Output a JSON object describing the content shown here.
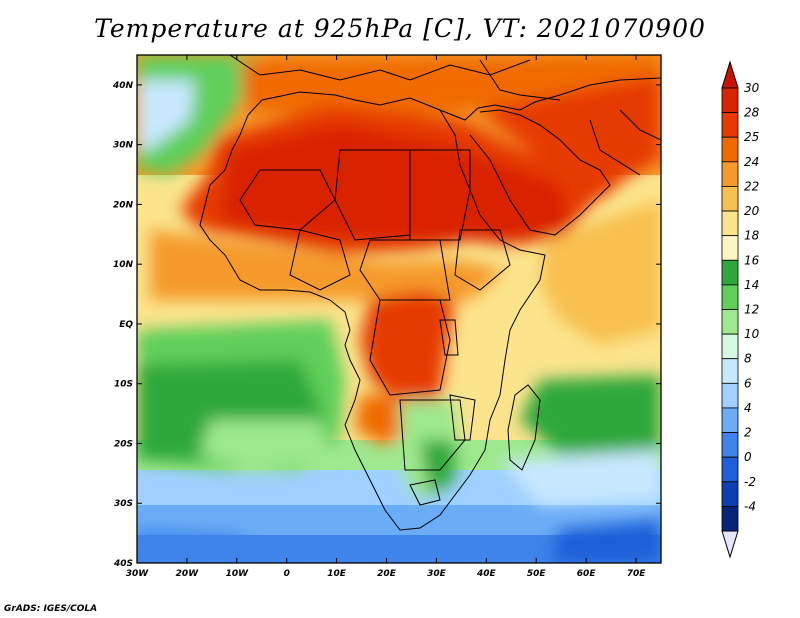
{
  "title": "Temperature at 925hPa [C], VT: 2021070900",
  "credit": "GrADS: IGES/COLA",
  "map": {
    "lat_ticks": [
      "40N",
      "30N",
      "20N",
      "10N",
      "EQ",
      "10S",
      "20S",
      "30S",
      "40S"
    ],
    "lon_ticks": [
      "30W",
      "20W",
      "10W",
      "0",
      "10E",
      "20E",
      "30E",
      "40E",
      "50E",
      "60E",
      "70E"
    ],
    "lon_range": [
      -30,
      75
    ],
    "lat_range": [
      -40,
      45
    ]
  },
  "colorbar": {
    "labels": [
      "30",
      "28",
      "25",
      "24",
      "22",
      "20",
      "18",
      "16",
      "14",
      "12",
      "10",
      "8",
      "6",
      "4",
      "2",
      "0",
      "-2",
      "-4"
    ],
    "colors": [
      "#d92400",
      "#e63a00",
      "#f06a00",
      "#f59a2a",
      "#f8c050",
      "#fbe48c",
      "#fef6c0",
      "#2fa83a",
      "#5fcf5a",
      "#9ee88e",
      "#d4f8e0",
      "#c8e8ff",
      "#9fd0ff",
      "#6aacf6",
      "#3e84ea",
      "#1c5fd8",
      "#0c3fb0",
      "#08247a"
    ],
    "top_cap_color": "#c81400",
    "bottom_cap_color": "#e4e4ff"
  }
}
